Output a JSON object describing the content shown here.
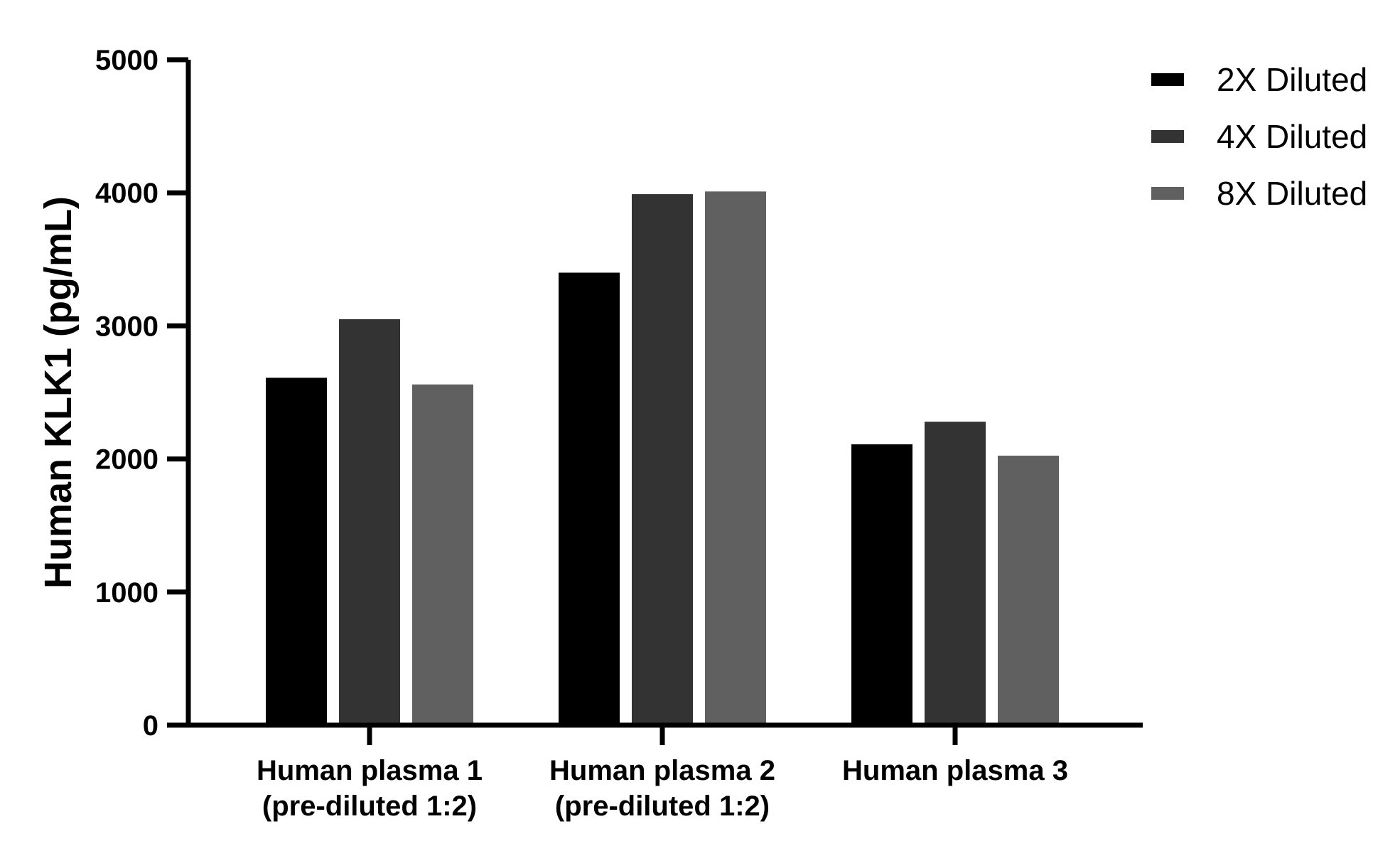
{
  "chart_data": {
    "type": "bar",
    "title": "",
    "xlabel": "",
    "ylabel": "Human KLK1  (pg/mL)",
    "ylim": [
      0,
      5000
    ],
    "yticks": [
      0,
      1000,
      2000,
      3000,
      4000,
      5000
    ],
    "categories": [
      [
        "Human plasma 1",
        "(pre-diluted 1:2)"
      ],
      [
        "Human plasma 2",
        "(pre-diluted 1:2)"
      ],
      [
        "Human plasma 3"
      ]
    ],
    "series": [
      {
        "name": "2X Diluted",
        "color": "#000000",
        "values": [
          2610,
          3400,
          2110
        ]
      },
      {
        "name": "4X Diluted",
        "color": "#333333",
        "values": [
          3050,
          3990,
          2280
        ]
      },
      {
        "name": "8X Diluted",
        "color": "#606060",
        "values": [
          2560,
          4010,
          2025
        ]
      }
    ],
    "grid": false,
    "legend": "top-right"
  }
}
